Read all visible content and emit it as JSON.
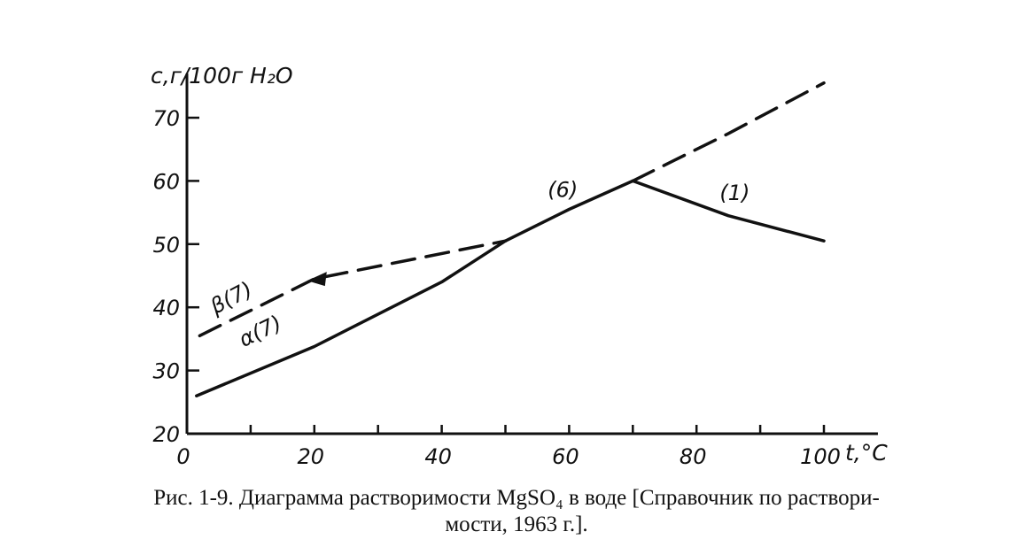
{
  "chart_data": {
    "type": "line",
    "ylabel": "c,г/100г H₂O",
    "xlabel": "t,°C",
    "xlim": [
      0,
      105
    ],
    "ylim": [
      20,
      77
    ],
    "xticks": [
      0,
      20,
      40,
      60,
      80,
      100
    ],
    "xtick_minor": [
      10,
      30,
      50,
      70,
      90
    ],
    "yticks": [
      20,
      30,
      40,
      50,
      60,
      70
    ],
    "grid": false,
    "series": [
      {
        "name": "α(7)",
        "style": "solid",
        "x": [
          1.5,
          20,
          40,
          50
        ],
        "y": [
          26,
          33.8,
          44,
          50.5
        ]
      },
      {
        "name": "(6)",
        "style": "solid",
        "x": [
          50,
          60,
          70
        ],
        "y": [
          50.5,
          55.5,
          60
        ]
      },
      {
        "name": "(1)",
        "style": "solid",
        "x": [
          70,
          85,
          100
        ],
        "y": [
          60,
          54.5,
          50.5
        ]
      },
      {
        "name": "β(7)",
        "style": "dashed",
        "x": [
          2,
          20,
          35,
          50
        ],
        "y": [
          35.5,
          44.5,
          47.5,
          50.5
        ]
      },
      {
        "name": "",
        "style": "dashed",
        "x": [
          70,
          85,
          100
        ],
        "y": [
          60,
          67.5,
          75.5
        ]
      }
    ],
    "labels": [
      {
        "text": "β(7)",
        "x": 7.5,
        "y": 40.5,
        "rotate": -28
      },
      {
        "text": "α(7)",
        "x": 12,
        "y": 35.2,
        "rotate": -26
      },
      {
        "text": "(6)",
        "x": 59,
        "y": 57.5,
        "rotate": 0
      },
      {
        "text": "(1)",
        "x": 86,
        "y": 57,
        "rotate": 0
      }
    ]
  },
  "caption": {
    "line1": "Рис. 1-9. Диаграмма растворимости MgSO₄ в воде [Справочник по раствори-",
    "line2": "мости, 1963 г.]."
  }
}
